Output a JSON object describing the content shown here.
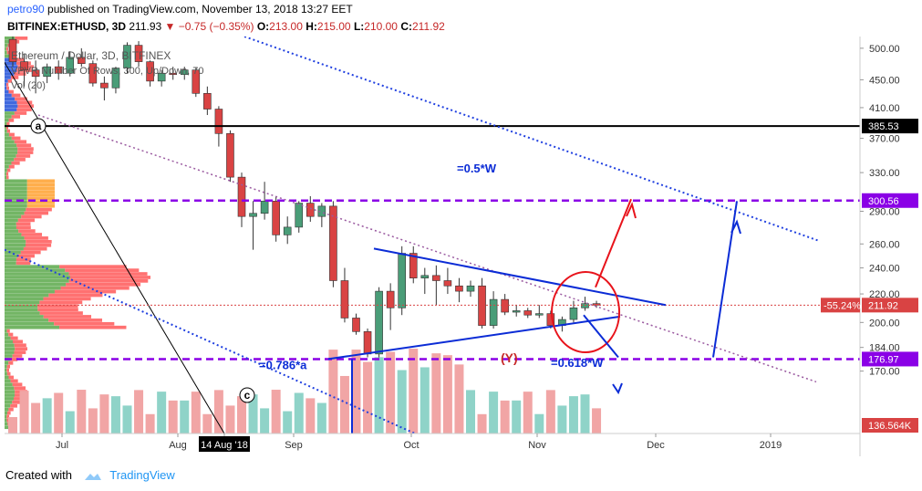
{
  "header": {
    "user": "petro90",
    "published_text": "published on TradingView.com, November 13, 2018 13:27 EET",
    "symbol": "BITFINEX:ETHUSD, 3D",
    "last": "211.93",
    "change": "−0.75 (−0.35%)",
    "o_label": "O:",
    "o_value": "213.00",
    "h_label": "H:",
    "h_value": "215.00",
    "l_label": "L:",
    "l_value": "210.00",
    "c_label": "C:",
    "c_value": "211.92"
  },
  "overlay_legend": {
    "title": "Ethereum / Dollar, 3D, BITFINEX",
    "vpvr": "VPVR Number Of Rows, 300, Up/Down, 70",
    "vol": "Vol (20)"
  },
  "footer": {
    "created_with": "Created with",
    "brand": "TradingView"
  },
  "colors": {
    "up": "#4a9d78",
    "down": "#d94343",
    "vol_up": "#8fd3c8",
    "vol_down": "#f1a5a5",
    "purple": "#8a00e6",
    "blue": "#0b2cd6",
    "red": "#e8131b",
    "dotblue": "#2040e0",
    "dotpurple": "#9a5aa0"
  },
  "chart_data": {
    "type": "candlestick",
    "title": "Ethereum / Dollar, 3D, BITFINEX",
    "y_scale": "log",
    "ylim": [
      138,
      520
    ],
    "y_ticks": [
      "500.00",
      "450.00",
      "410.00",
      "370.00",
      "330.00",
      "290.00",
      "260.00",
      "240.00",
      "220.00",
      "200.00",
      "184.00",
      "170.00"
    ],
    "x_labels": [
      "Jul",
      "Aug",
      "14 Aug '18",
      "Sep",
      "Oct",
      "Nov",
      "Dec",
      "2019"
    ],
    "price_labels": [
      {
        "text": "385.53",
        "price": 385.53,
        "style": "black"
      },
      {
        "text": "300.56",
        "price": 300.56,
        "style": "purple"
      },
      {
        "text": "211.92",
        "price": 211.92,
        "style": "red"
      },
      {
        "text": "-55.24%",
        "price": 211.92,
        "style": "red"
      },
      {
        "text": "176.97",
        "price": 176.97,
        "style": "purple"
      },
      {
        "text": "136.564K",
        "price": 138,
        "style": "red"
      }
    ],
    "horizontal_lines": [
      {
        "name": "black-level",
        "price": 385.53
      },
      {
        "name": "purple-level-upper",
        "price": 300.56
      },
      {
        "name": "purple-level-lower",
        "price": 176.97
      }
    ],
    "annotations": [
      "=0.5*W",
      "=0.786*a",
      "=0.618*W",
      "(Y)",
      "a",
      "c"
    ],
    "candles": [
      {
        "o": 515,
        "h": 530,
        "l": 470,
        "c": 478
      },
      {
        "o": 478,
        "h": 490,
        "l": 440,
        "c": 465
      },
      {
        "o": 465,
        "h": 480,
        "l": 430,
        "c": 455
      },
      {
        "o": 455,
        "h": 475,
        "l": 445,
        "c": 470
      },
      {
        "o": 470,
        "h": 480,
        "l": 450,
        "c": 460
      },
      {
        "o": 460,
        "h": 495,
        "l": 455,
        "c": 485
      },
      {
        "o": 485,
        "h": 500,
        "l": 470,
        "c": 475
      },
      {
        "o": 475,
        "h": 480,
        "l": 440,
        "c": 445
      },
      {
        "o": 445,
        "h": 455,
        "l": 420,
        "c": 438
      },
      {
        "o": 438,
        "h": 470,
        "l": 430,
        "c": 468
      },
      {
        "o": 468,
        "h": 510,
        "l": 460,
        "c": 505
      },
      {
        "o": 505,
        "h": 512,
        "l": 470,
        "c": 478
      },
      {
        "o": 478,
        "h": 480,
        "l": 440,
        "c": 448
      },
      {
        "o": 448,
        "h": 465,
        "l": 440,
        "c": 460
      },
      {
        "o": 460,
        "h": 470,
        "l": 450,
        "c": 458
      },
      {
        "o": 458,
        "h": 470,
        "l": 450,
        "c": 465
      },
      {
        "o": 465,
        "h": 468,
        "l": 425,
        "c": 430
      },
      {
        "o": 430,
        "h": 440,
        "l": 400,
        "c": 408
      },
      {
        "o": 408,
        "h": 412,
        "l": 360,
        "c": 376
      },
      {
        "o": 376,
        "h": 380,
        "l": 320,
        "c": 325
      },
      {
        "o": 325,
        "h": 330,
        "l": 275,
        "c": 285
      },
      {
        "o": 285,
        "h": 300,
        "l": 255,
        "c": 288
      },
      {
        "o": 288,
        "h": 320,
        "l": 282,
        "c": 300
      },
      {
        "o": 300,
        "h": 305,
        "l": 262,
        "c": 268
      },
      {
        "o": 268,
        "h": 285,
        "l": 260,
        "c": 275
      },
      {
        "o": 275,
        "h": 300,
        "l": 270,
        "c": 298
      },
      {
        "o": 298,
        "h": 305,
        "l": 280,
        "c": 285
      },
      {
        "o": 285,
        "h": 298,
        "l": 275,
        "c": 295
      },
      {
        "o": 295,
        "h": 300,
        "l": 225,
        "c": 230
      },
      {
        "o": 230,
        "h": 240,
        "l": 200,
        "c": 203
      },
      {
        "o": 203,
        "h": 206,
        "l": 192,
        "c": 194
      },
      {
        "o": 194,
        "h": 196,
        "l": 178,
        "c": 180
      },
      {
        "o": 180,
        "h": 225,
        "l": 178,
        "c": 222
      },
      {
        "o": 222,
        "h": 228,
        "l": 195,
        "c": 210
      },
      {
        "o": 210,
        "h": 258,
        "l": 205,
        "c": 252
      },
      {
        "o": 252,
        "h": 258,
        "l": 228,
        "c": 232
      },
      {
        "o": 232,
        "h": 240,
        "l": 220,
        "c": 234
      },
      {
        "o": 234,
        "h": 242,
        "l": 212,
        "c": 230
      },
      {
        "o": 230,
        "h": 240,
        "l": 220,
        "c": 226
      },
      {
        "o": 226,
        "h": 232,
        "l": 214,
        "c": 222
      },
      {
        "o": 222,
        "h": 230,
        "l": 218,
        "c": 226
      },
      {
        "o": 226,
        "h": 232,
        "l": 196,
        "c": 198
      },
      {
        "o": 198,
        "h": 222,
        "l": 196,
        "c": 216
      },
      {
        "o": 216,
        "h": 220,
        "l": 205,
        "c": 207
      },
      {
        "o": 207,
        "h": 212,
        "l": 204,
        "c": 208
      },
      {
        "o": 208,
        "h": 210,
        "l": 203,
        "c": 205
      },
      {
        "o": 205,
        "h": 212,
        "l": 203,
        "c": 206
      },
      {
        "o": 206,
        "h": 208,
        "l": 196,
        "c": 198
      },
      {
        "o": 198,
        "h": 204,
        "l": 194,
        "c": 202
      },
      {
        "o": 202,
        "h": 215,
        "l": 200,
        "c": 210
      },
      {
        "o": 210,
        "h": 218,
        "l": 208,
        "c": 213
      },
      {
        "o": 213,
        "h": 215,
        "l": 210,
        "c": 211.92
      }
    ]
  }
}
